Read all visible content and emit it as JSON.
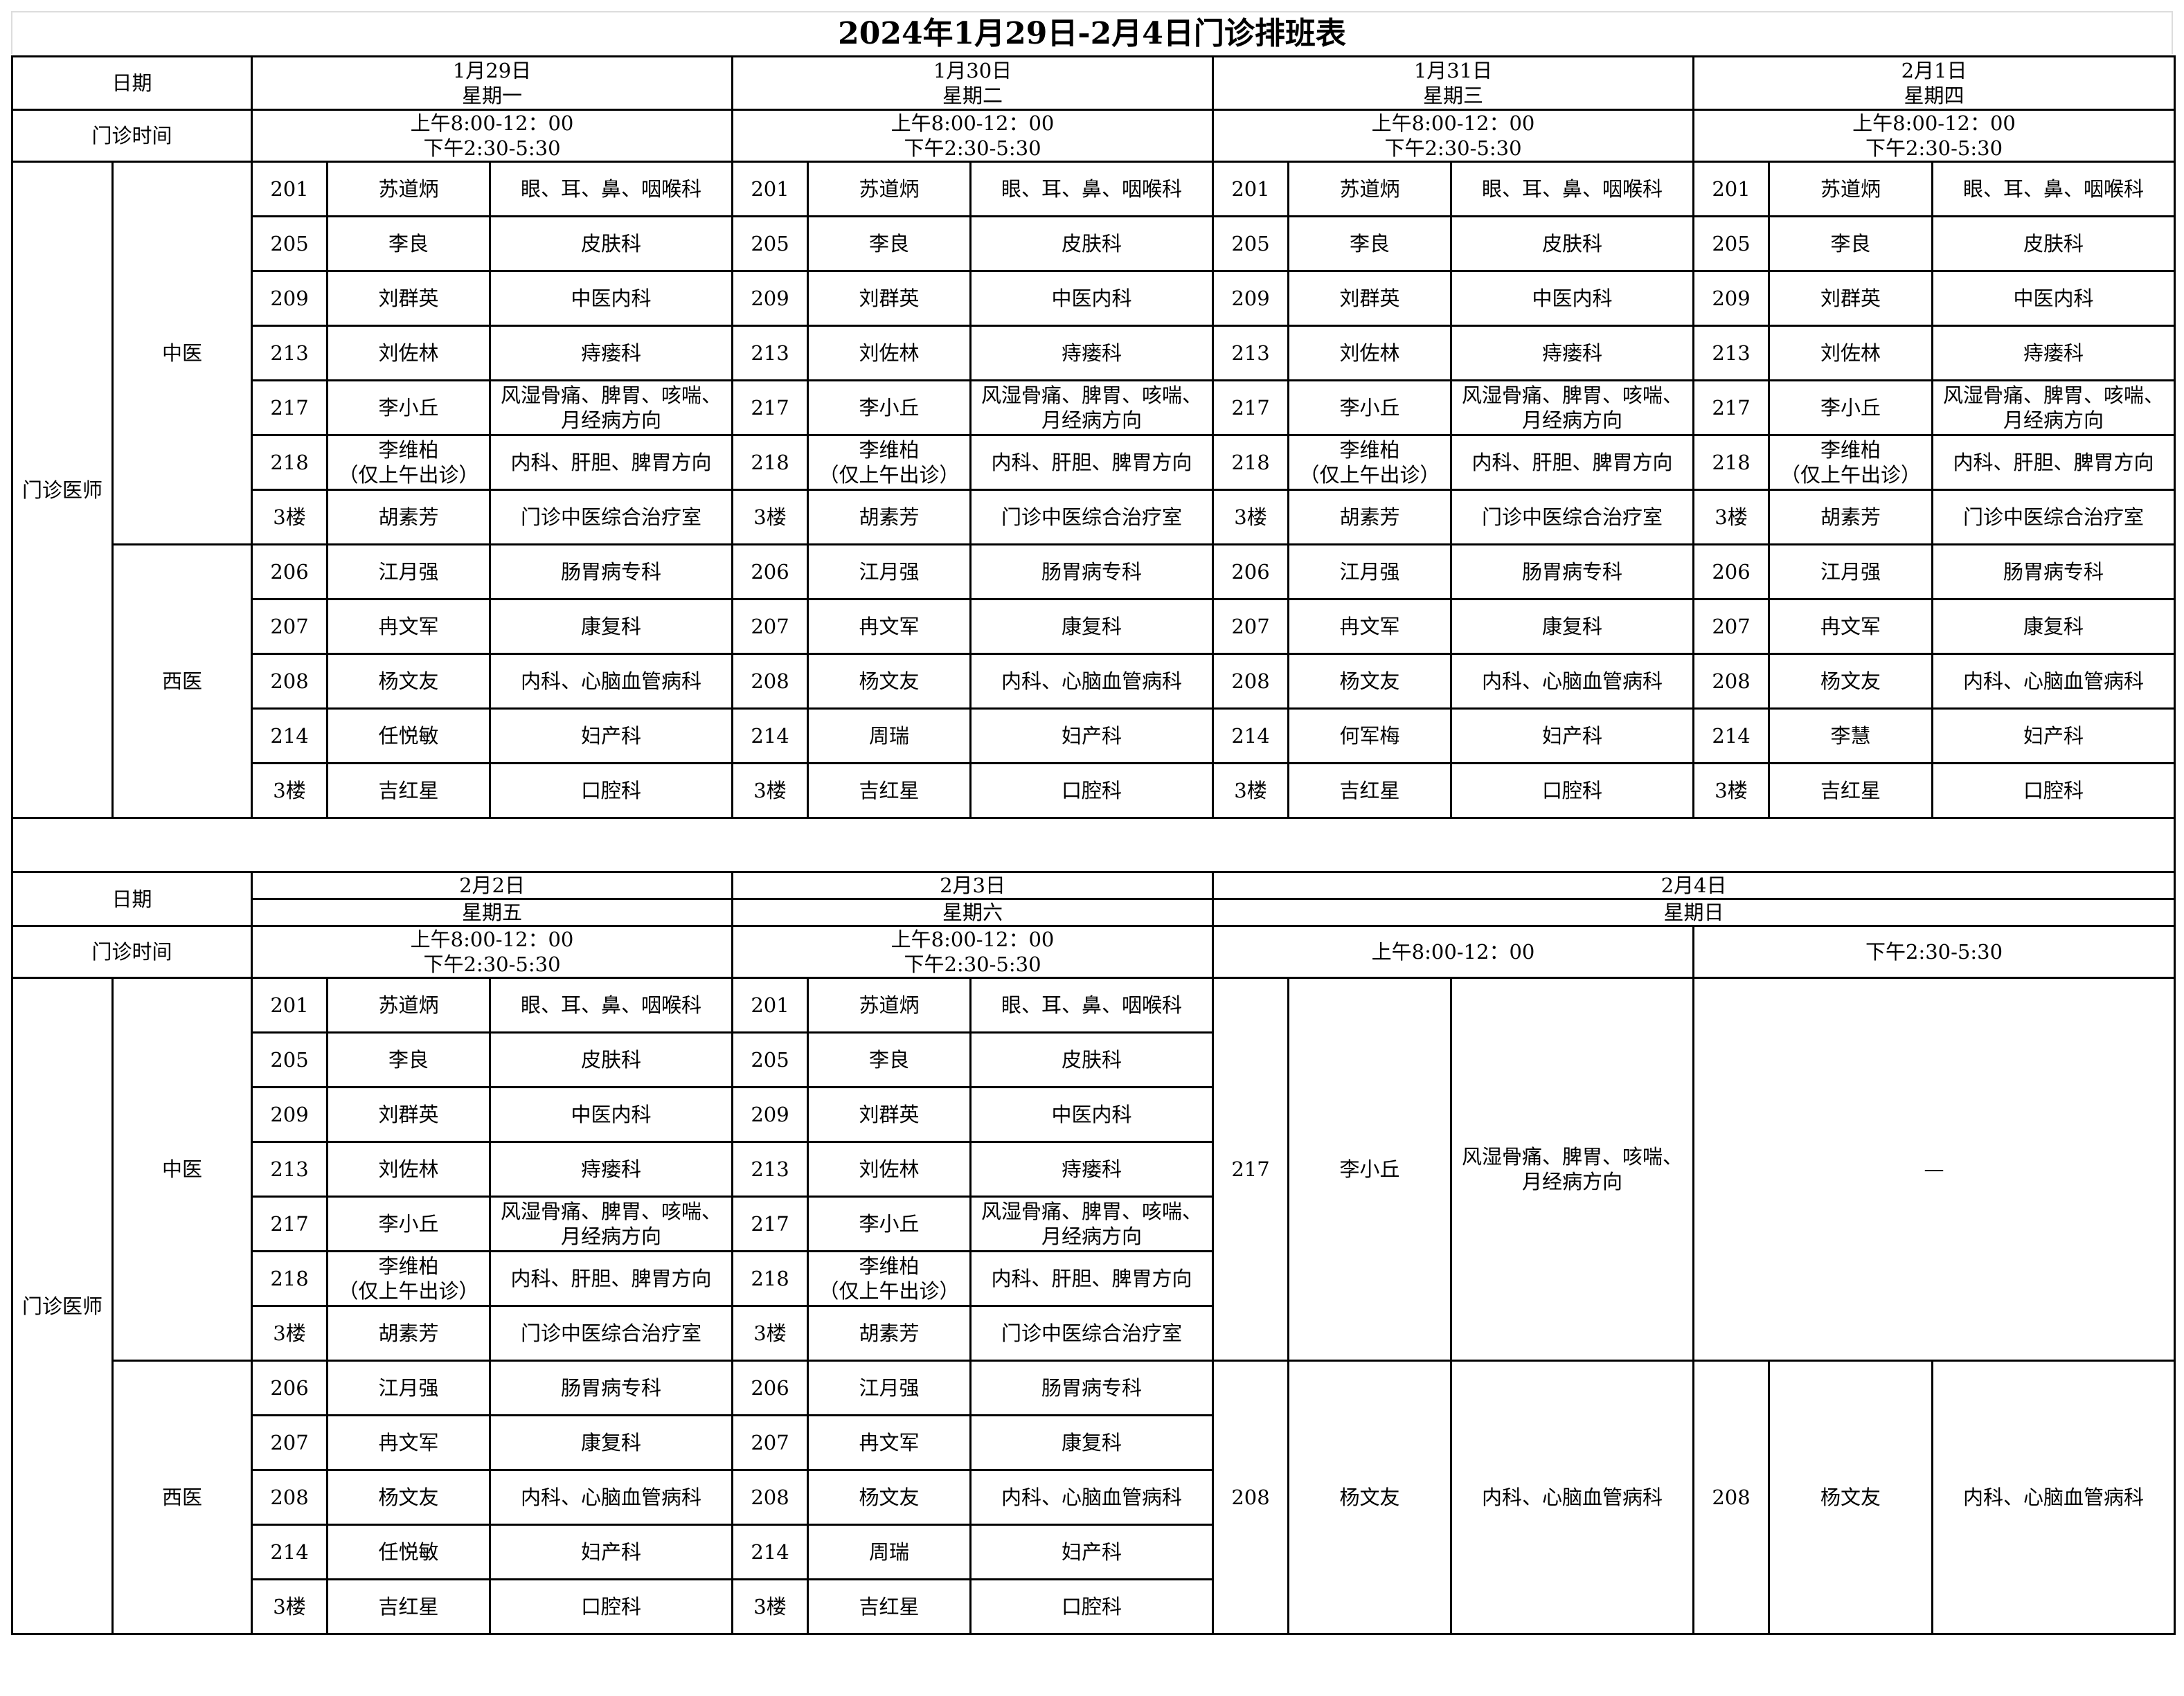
{
  "title": "2024年1月29日-2月4日门诊排班表",
  "labels": {
    "date": "日期",
    "time": "门诊时间",
    "doctors": "门诊医师",
    "tcm": "中医",
    "western": "西医"
  },
  "week1": [
    {
      "date": "1月29日",
      "weekday": "星期一",
      "am": "上午8:00-12：00",
      "pm": "下午2:30-5:30",
      "tcm": [
        [
          "201",
          "苏道炳",
          "眼、耳、鼻、咽喉科"
        ],
        [
          "205",
          "李良",
          "皮肤科"
        ],
        [
          "209",
          "刘群英",
          "中医内科"
        ],
        [
          "213",
          "刘佐林",
          "痔瘘科"
        ],
        [
          "217",
          "李小丘",
          "风湿骨痛、脾胃、咳喘、月经病方向"
        ],
        [
          "218",
          "李维柏\n（仅上午出诊）",
          "内科、肝胆、脾胃方向"
        ],
        [
          "3楼",
          "胡素芳",
          "门诊中医综合治疗室"
        ]
      ],
      "western": [
        [
          "206",
          "江月强",
          "肠胃病专科"
        ],
        [
          "207",
          "冉文军",
          "康复科"
        ],
        [
          "208",
          "杨文友",
          "内科、心脑血管病科"
        ],
        [
          "214",
          "任悦敏",
          "妇产科"
        ],
        [
          "3楼",
          "吉红星",
          "口腔科"
        ]
      ]
    },
    {
      "date": "1月30日",
      "weekday": "星期二",
      "am": "上午8:00-12：00",
      "pm": "下午2:30-5:30",
      "tcm": [
        [
          "201",
          "苏道炳",
          "眼、耳、鼻、咽喉科"
        ],
        [
          "205",
          "李良",
          "皮肤科"
        ],
        [
          "209",
          "刘群英",
          "中医内科"
        ],
        [
          "213",
          "刘佐林",
          "痔瘘科"
        ],
        [
          "217",
          "李小丘",
          "风湿骨痛、脾胃、咳喘、月经病方向"
        ],
        [
          "218",
          "李维柏\n（仅上午出诊）",
          "内科、肝胆、脾胃方向"
        ],
        [
          "3楼",
          "胡素芳",
          "门诊中医综合治疗室"
        ]
      ],
      "western": [
        [
          "206",
          "江月强",
          "肠胃病专科"
        ],
        [
          "207",
          "冉文军",
          "康复科"
        ],
        [
          "208",
          "杨文友",
          "内科、心脑血管病科"
        ],
        [
          "214",
          "周瑞",
          "妇产科"
        ],
        [
          "3楼",
          "吉红星",
          "口腔科"
        ]
      ]
    },
    {
      "date": "1月31日",
      "weekday": "星期三",
      "am": "上午8:00-12：00",
      "pm": "下午2:30-5:30",
      "tcm": [
        [
          "201",
          "苏道炳",
          "眼、耳、鼻、咽喉科"
        ],
        [
          "205",
          "李良",
          "皮肤科"
        ],
        [
          "209",
          "刘群英",
          "中医内科"
        ],
        [
          "213",
          "刘佐林",
          "痔瘘科"
        ],
        [
          "217",
          "李小丘",
          "风湿骨痛、脾胃、咳喘、月经病方向"
        ],
        [
          "218",
          "李维柏\n（仅上午出诊）",
          "内科、肝胆、脾胃方向"
        ],
        [
          "3楼",
          "胡素芳",
          "门诊中医综合治疗室"
        ]
      ],
      "western": [
        [
          "206",
          "江月强",
          "肠胃病专科"
        ],
        [
          "207",
          "冉文军",
          "康复科"
        ],
        [
          "208",
          "杨文友",
          "内科、心脑血管病科"
        ],
        [
          "214",
          "何军梅",
          "妇产科"
        ],
        [
          "3楼",
          "吉红星",
          "口腔科"
        ]
      ]
    },
    {
      "date": "2月1日",
      "weekday": "星期四",
      "am": "上午8:00-12：00",
      "pm": "下午2:30-5:30",
      "tcm": [
        [
          "201",
          "苏道炳",
          "眼、耳、鼻、咽喉科"
        ],
        [
          "205",
          "李良",
          "皮肤科"
        ],
        [
          "209",
          "刘群英",
          "中医内科"
        ],
        [
          "213",
          "刘佐林",
          "痔瘘科"
        ],
        [
          "217",
          "李小丘",
          "风湿骨痛、脾胃、咳喘、月经病方向"
        ],
        [
          "218",
          "李维柏\n（仅上午出诊）",
          "内科、肝胆、脾胃方向"
        ],
        [
          "3楼",
          "胡素芳",
          "门诊中医综合治疗室"
        ]
      ],
      "western": [
        [
          "206",
          "江月强",
          "肠胃病专科"
        ],
        [
          "207",
          "冉文军",
          "康复科"
        ],
        [
          "208",
          "杨文友",
          "内科、心脑血管病科"
        ],
        [
          "214",
          "李慧",
          "妇产科"
        ],
        [
          "3楼",
          "吉红星",
          "口腔科"
        ]
      ]
    }
  ],
  "week2": [
    {
      "date": "2月2日",
      "weekday": "星期五",
      "am": "上午8:00-12：00",
      "pm": "下午2:30-5:30",
      "tcm": [
        [
          "201",
          "苏道炳",
          "眼、耳、鼻、咽喉科"
        ],
        [
          "205",
          "李良",
          "皮肤科"
        ],
        [
          "209",
          "刘群英",
          "中医内科"
        ],
        [
          "213",
          "刘佐林",
          "痔瘘科"
        ],
        [
          "217",
          "李小丘",
          "风湿骨痛、脾胃、咳喘、月经病方向"
        ],
        [
          "218",
          "李维柏\n（仅上午出诊）",
          "内科、肝胆、脾胃方向"
        ],
        [
          "3楼",
          "胡素芳",
          "门诊中医综合治疗室"
        ]
      ],
      "western": [
        [
          "206",
          "江月强",
          "肠胃病专科"
        ],
        [
          "207",
          "冉文军",
          "康复科"
        ],
        [
          "208",
          "杨文友",
          "内科、心脑血管病科"
        ],
        [
          "214",
          "任悦敏",
          "妇产科"
        ],
        [
          "3楼",
          "吉红星",
          "口腔科"
        ]
      ]
    },
    {
      "date": "2月3日",
      "weekday": "星期六",
      "am": "上午8:00-12：00",
      "pm": "下午2:30-5:30",
      "tcm": [
        [
          "201",
          "苏道炳",
          "眼、耳、鼻、咽喉科"
        ],
        [
          "205",
          "李良",
          "皮肤科"
        ],
        [
          "209",
          "刘群英",
          "中医内科"
        ],
        [
          "213",
          "刘佐林",
          "痔瘘科"
        ],
        [
          "217",
          "李小丘",
          "风湿骨痛、脾胃、咳喘、月经病方向"
        ],
        [
          "218",
          "李维柏\n（仅上午出诊）",
          "内科、肝胆、脾胃方向"
        ],
        [
          "3楼",
          "胡素芳",
          "门诊中医综合治疗室"
        ]
      ],
      "western": [
        [
          "206",
          "江月强",
          "肠胃病专科"
        ],
        [
          "207",
          "冉文军",
          "康复科"
        ],
        [
          "208",
          "杨文友",
          "内科、心脑血管病科"
        ],
        [
          "214",
          "周瑞",
          "妇产科"
        ],
        [
          "3楼",
          "吉红星",
          "口腔科"
        ]
      ]
    }
  ],
  "sunday": {
    "date": "2月4日",
    "weekday": "星期日",
    "am": "上午8:00-12：00",
    "pm": "下午2:30-5:30",
    "tcm_am": [
      "217",
      "李小丘",
      "风湿骨痛、脾胃、咳喘、月经病方向"
    ],
    "tcm_pm": "—",
    "western_am": [
      "208",
      "杨文友",
      "内科、心脑血管病科"
    ],
    "western_pm": [
      "208",
      "杨文友",
      "内科、心脑血管病科"
    ]
  }
}
